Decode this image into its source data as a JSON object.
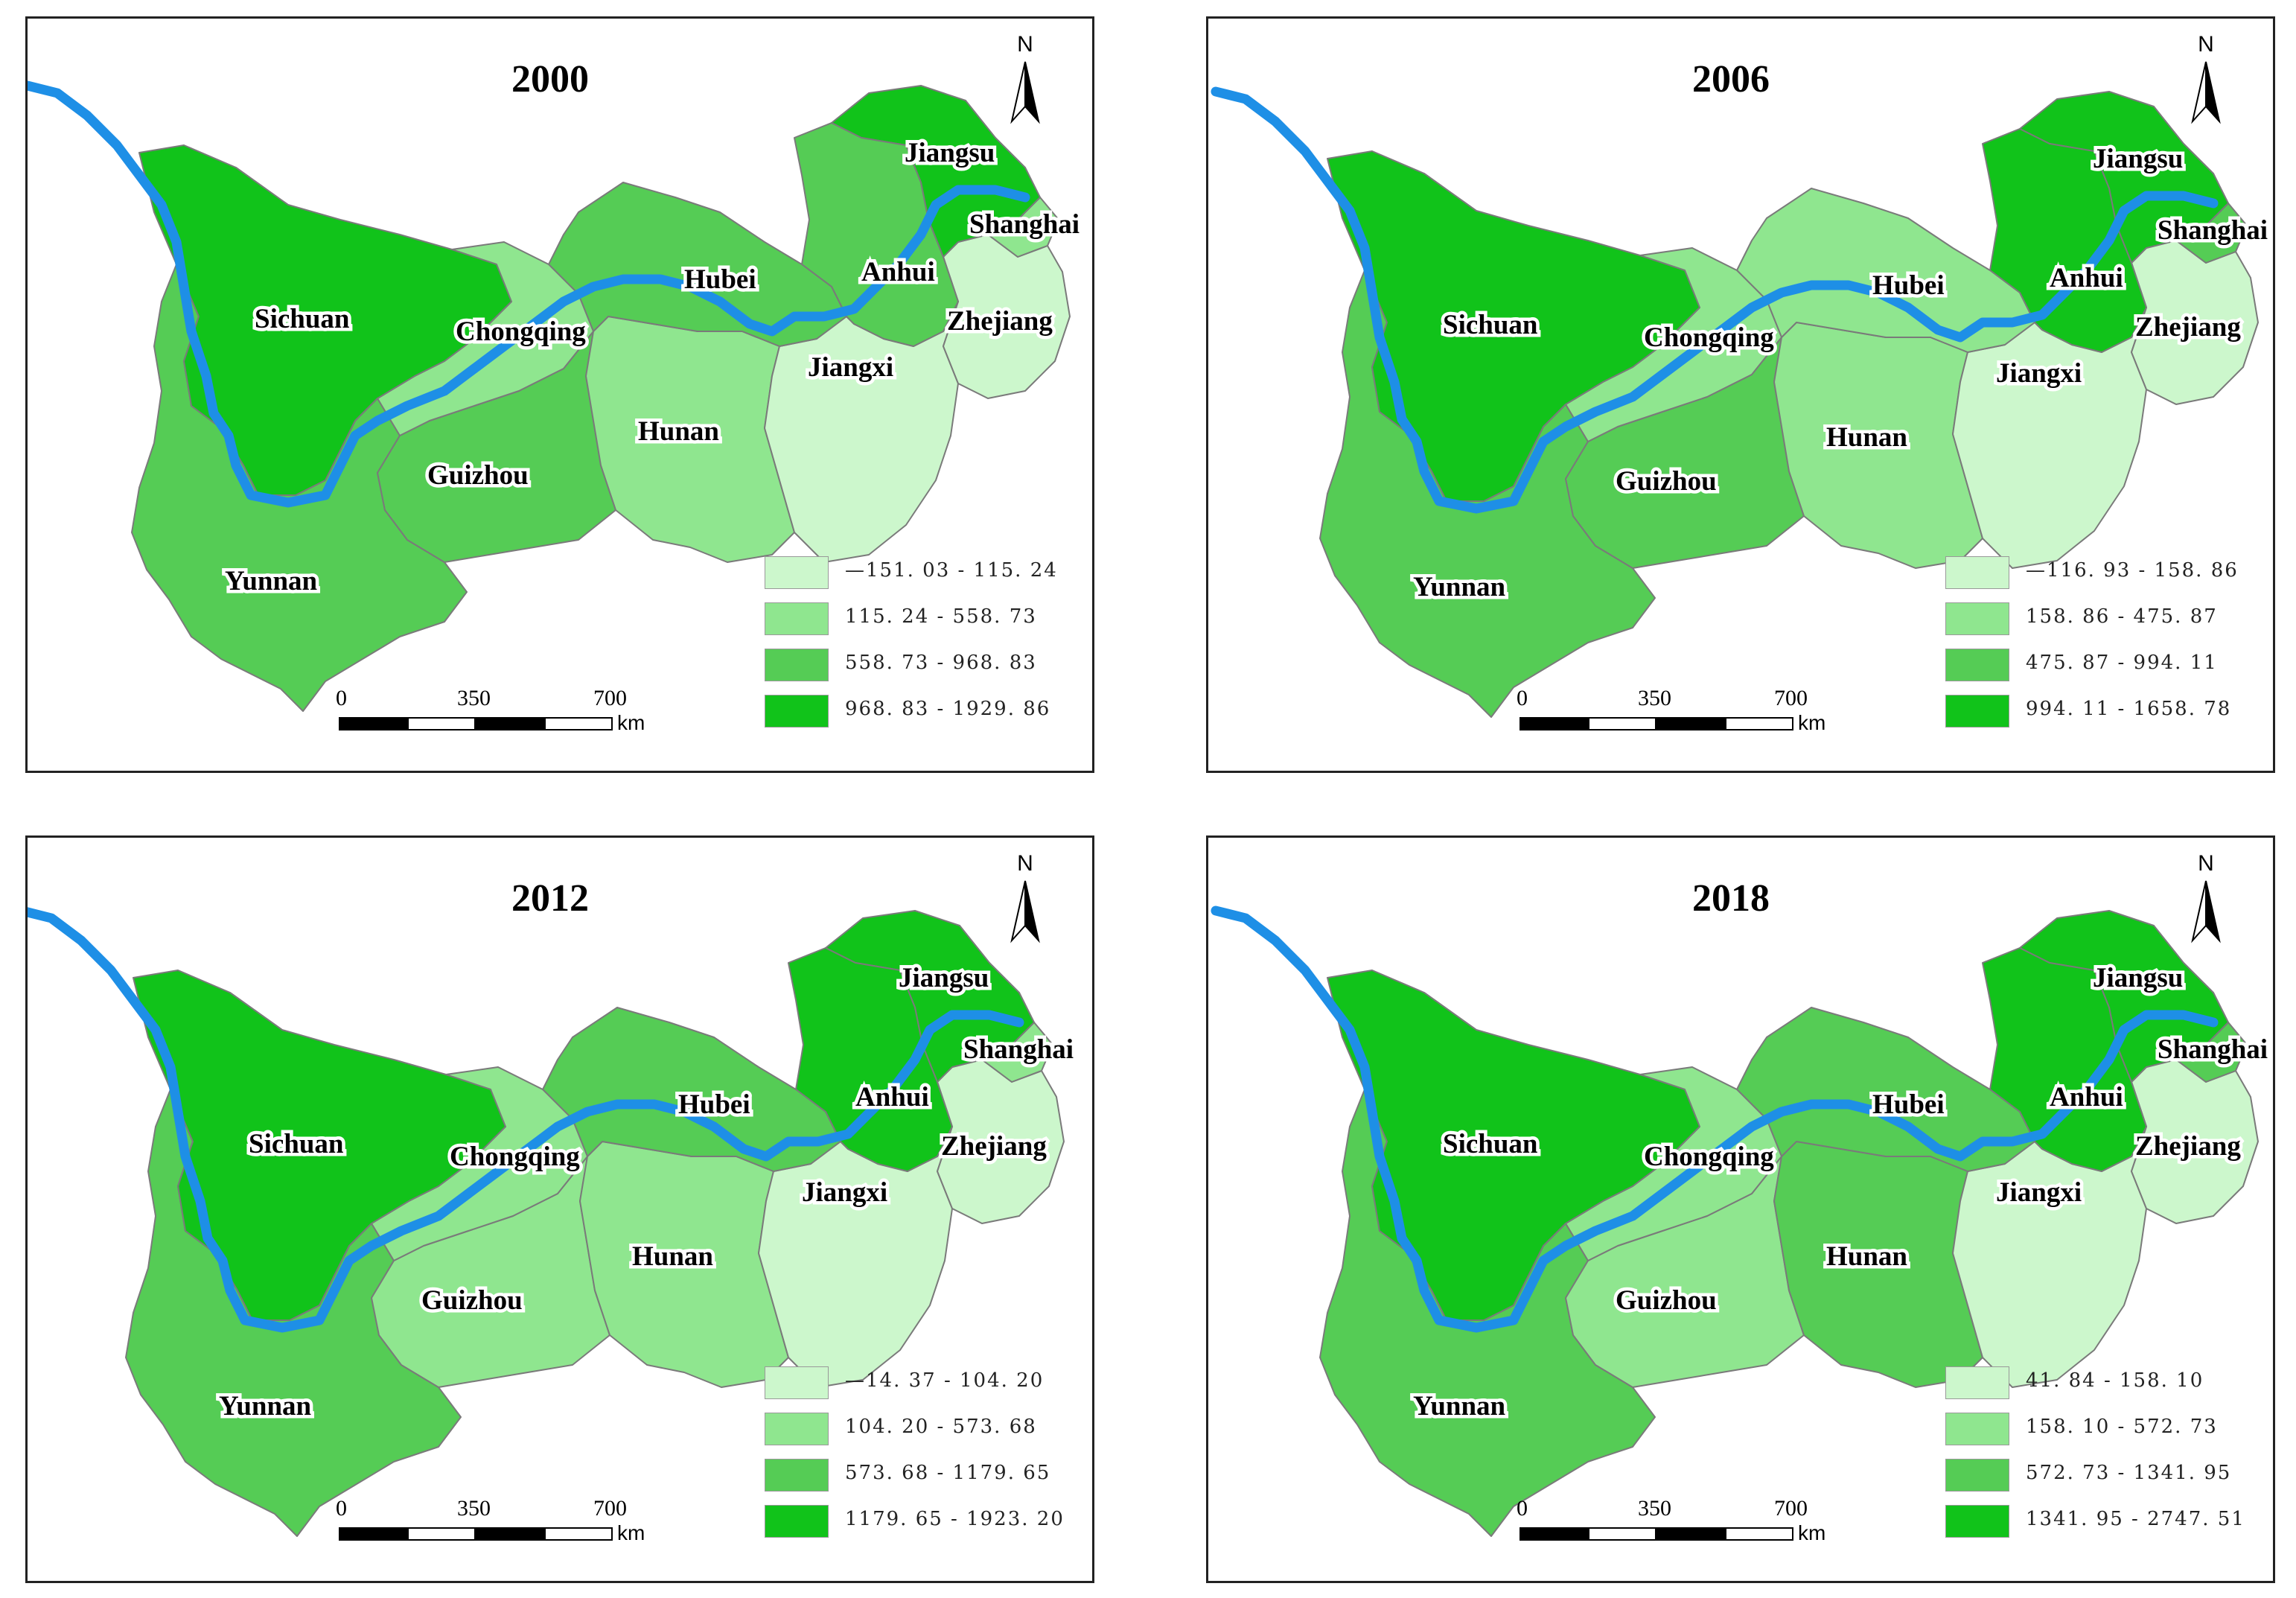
{
  "colors": {
    "class1": "#ccf7cc",
    "class2": "#8fe68f",
    "class3": "#55cc55",
    "class4": "#11c31a",
    "river": "#1e8fe6",
    "border": "#7a7a7a"
  },
  "scale": {
    "ticks": [
      "0",
      "350",
      "700"
    ],
    "unit": "km"
  },
  "north_label": "N",
  "province_names": {
    "sichuan": "Sichuan",
    "chongqing": "Chongqing",
    "hubei": "Hubei",
    "anhui": "Anhui",
    "jiangsu": "Jiangsu",
    "shanghai": "Shanghai",
    "zhejiang": "Zhejiang",
    "jiangxi": "Jiangxi",
    "hunan": "Hunan",
    "guizhou": "Guizhou",
    "yunnan": "Yunnan"
  },
  "panels": [
    {
      "year": "2000",
      "legend": [
        "—151. 03 - 115. 24",
        "115. 24 - 558. 73",
        "558. 73 - 968. 83",
        "968. 83 - 1929. 86"
      ],
      "classes": {
        "sichuan": 4,
        "chongqing": 2,
        "hubei": 3,
        "anhui": 3,
        "jiangsu": 4,
        "shanghai": 2,
        "zhejiang": 1,
        "jiangxi": 1,
        "hunan": 2,
        "guizhou": 3,
        "yunnan": 3
      }
    },
    {
      "year": "2006",
      "legend": [
        "—116. 93 - 158. 86",
        "158. 86 - 475. 87",
        "475. 87 - 994. 11",
        "994. 11 - 1658. 78"
      ],
      "classes": {
        "sichuan": 4,
        "chongqing": 2,
        "hubei": 2,
        "anhui": 4,
        "jiangsu": 4,
        "shanghai": 3,
        "zhejiang": 1,
        "jiangxi": 1,
        "hunan": 2,
        "guizhou": 3,
        "yunnan": 3
      }
    },
    {
      "year": "2012",
      "legend": [
        "—14. 37 - 104. 20",
        "104. 20 - 573. 68",
        "573. 68 - 1179. 65",
        "1179. 65 - 1923. 20"
      ],
      "classes": {
        "sichuan": 4,
        "chongqing": 2,
        "hubei": 3,
        "anhui": 4,
        "jiangsu": 4,
        "shanghai": 2,
        "zhejiang": 1,
        "jiangxi": 1,
        "hunan": 2,
        "guizhou": 2,
        "yunnan": 3
      }
    },
    {
      "year": "2018",
      "legend": [
        "41. 84 - 158. 10",
        "158. 10 - 572. 73",
        "572. 73 - 1341. 95",
        "1341. 95 - 2747. 51"
      ],
      "classes": {
        "sichuan": 4,
        "chongqing": 2,
        "hubei": 3,
        "anhui": 4,
        "jiangsu": 4,
        "shanghai": 3,
        "zhejiang": 1,
        "jiangxi": 1,
        "hunan": 3,
        "guizhou": 2,
        "yunnan": 3
      }
    }
  ]
}
